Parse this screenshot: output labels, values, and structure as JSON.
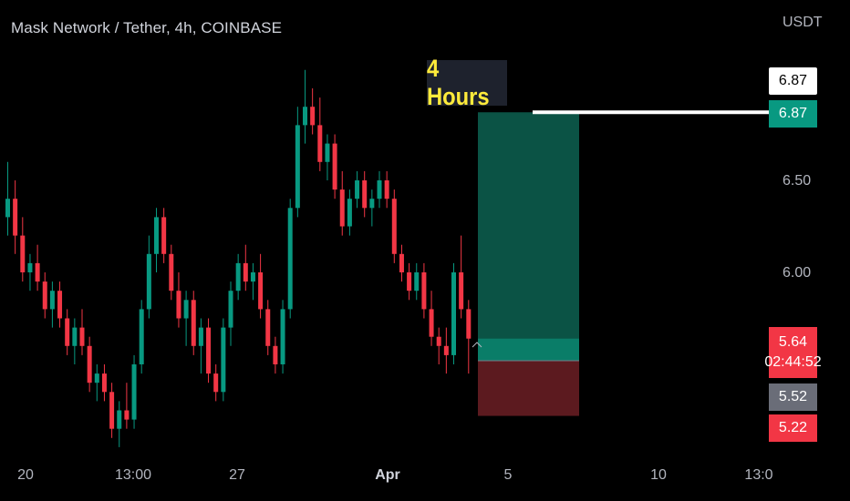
{
  "header": {
    "title": "Mask Network / Tether, 4h, COINBASE",
    "currency": "USDT"
  },
  "badge": {
    "label": "4 Hours"
  },
  "price_axis": {
    "ticks": [
      "6.50",
      "6.00"
    ],
    "labels": {
      "top": "6.87",
      "target": "6.87",
      "current": "5.64",
      "countdown": "02:44:52",
      "entry": "5.52",
      "stop": "5.22"
    }
  },
  "time_axis": {
    "ticks": [
      "20",
      "13:00",
      "27",
      "Apr",
      "5",
      "10",
      "13:0"
    ]
  },
  "colors": {
    "up": "#089981",
    "down": "#f23645",
    "profit_zone": "#0b5345",
    "loss_zone": "#5c1a1f"
  },
  "chart_data": {
    "type": "candlestick",
    "symbol": "Mask Network / Tether",
    "interval": "4h",
    "exchange": "COINBASE",
    "ylim": [
      5.0,
      7.1
    ],
    "position": {
      "type": "long",
      "entry": 5.52,
      "target": 6.87,
      "stop": 5.22,
      "current": 5.64,
      "countdown": "02:44:52"
    },
    "candles": [
      [
        6.3,
        6.6,
        6.2,
        6.4
      ],
      [
        6.4,
        6.5,
        6.1,
        6.2
      ],
      [
        6.2,
        6.3,
        5.95,
        6.0
      ],
      [
        6.0,
        6.1,
        5.9,
        6.05
      ],
      [
        6.05,
        6.15,
        5.9,
        5.95
      ],
      [
        5.95,
        6.0,
        5.75,
        5.8
      ],
      [
        5.8,
        5.95,
        5.7,
        5.9
      ],
      [
        5.9,
        5.95,
        5.7,
        5.75
      ],
      [
        5.75,
        5.8,
        5.55,
        5.6
      ],
      [
        5.6,
        5.75,
        5.5,
        5.7
      ],
      [
        5.7,
        5.8,
        5.55,
        5.6
      ],
      [
        5.6,
        5.65,
        5.35,
        5.4
      ],
      [
        5.4,
        5.5,
        5.3,
        5.45
      ],
      [
        5.45,
        5.5,
        5.3,
        5.35
      ],
      [
        5.35,
        5.4,
        5.1,
        5.15
      ],
      [
        5.15,
        5.3,
        5.05,
        5.25
      ],
      [
        5.25,
        5.4,
        5.15,
        5.2
      ],
      [
        5.2,
        5.55,
        5.15,
        5.5
      ],
      [
        5.5,
        5.85,
        5.45,
        5.8
      ],
      [
        5.8,
        6.2,
        5.75,
        6.1
      ],
      [
        6.1,
        6.35,
        6.0,
        6.3
      ],
      [
        6.3,
        6.35,
        6.05,
        6.1
      ],
      [
        6.1,
        6.15,
        5.85,
        5.9
      ],
      [
        5.9,
        6.0,
        5.7,
        5.75
      ],
      [
        5.75,
        5.9,
        5.6,
        5.85
      ],
      [
        5.85,
        5.9,
        5.55,
        5.6
      ],
      [
        5.6,
        5.75,
        5.45,
        5.7
      ],
      [
        5.7,
        5.75,
        5.4,
        5.45
      ],
      [
        5.45,
        5.5,
        5.3,
        5.35
      ],
      [
        5.35,
        5.75,
        5.3,
        5.7
      ],
      [
        5.7,
        5.95,
        5.6,
        5.9
      ],
      [
        5.9,
        6.1,
        5.85,
        6.05
      ],
      [
        6.05,
        6.15,
        5.9,
        5.95
      ],
      [
        5.95,
        6.05,
        5.85,
        6.0
      ],
      [
        6.0,
        6.1,
        5.75,
        5.8
      ],
      [
        5.8,
        5.85,
        5.55,
        5.6
      ],
      [
        5.6,
        5.65,
        5.45,
        5.5
      ],
      [
        5.5,
        5.85,
        5.45,
        5.8
      ],
      [
        5.8,
        6.4,
        5.75,
        6.35
      ],
      [
        6.35,
        6.9,
        6.3,
        6.8
      ],
      [
        6.8,
        7.1,
        6.7,
        6.9
      ],
      [
        6.9,
        7.0,
        6.75,
        6.8
      ],
      [
        6.8,
        6.95,
        6.55,
        6.6
      ],
      [
        6.6,
        6.75,
        6.5,
        6.7
      ],
      [
        6.7,
        6.75,
        6.4,
        6.45
      ],
      [
        6.45,
        6.55,
        6.2,
        6.25
      ],
      [
        6.25,
        6.45,
        6.2,
        6.4
      ],
      [
        6.4,
        6.55,
        6.35,
        6.5
      ],
      [
        6.5,
        6.55,
        6.3,
        6.35
      ],
      [
        6.35,
        6.45,
        6.25,
        6.4
      ],
      [
        6.4,
        6.55,
        6.35,
        6.5
      ],
      [
        6.5,
        6.55,
        6.35,
        6.4
      ],
      [
        6.4,
        6.45,
        6.05,
        6.1
      ],
      [
        6.1,
        6.15,
        5.95,
        6.0
      ],
      [
        6.0,
        6.05,
        5.85,
        5.9
      ],
      [
        5.9,
        6.05,
        5.85,
        6.0
      ],
      [
        6.0,
        6.05,
        5.75,
        5.8
      ],
      [
        5.8,
        5.9,
        5.6,
        5.65
      ],
      [
        5.65,
        5.7,
        5.5,
        5.6
      ],
      [
        5.6,
        5.7,
        5.45,
        5.55
      ],
      [
        5.55,
        6.05,
        5.5,
        6.0
      ],
      [
        6.0,
        6.2,
        5.75,
        5.8
      ],
      [
        5.8,
        5.85,
        5.45,
        5.64
      ]
    ]
  }
}
